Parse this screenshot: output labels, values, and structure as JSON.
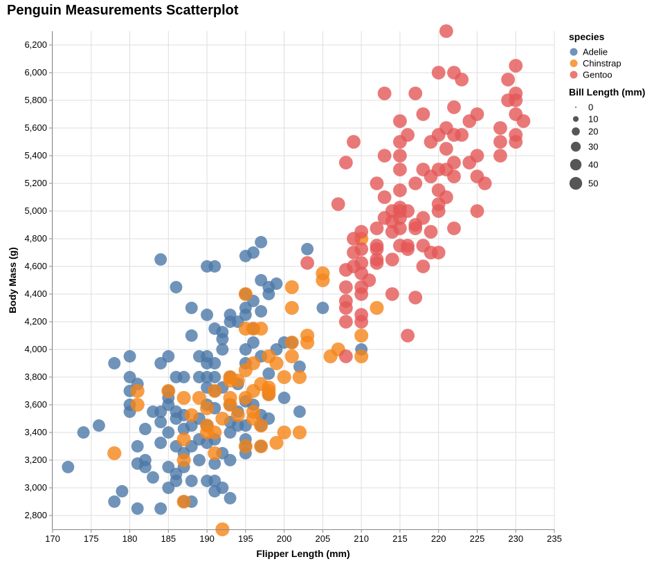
{
  "chart_data": {
    "type": "scatter",
    "title": "Penguin Measurements Scatterplot",
    "xlabel": "Flipper Length (mm)",
    "ylabel": "Body Mass (g)",
    "xlim": [
      170,
      235
    ],
    "ylim": [
      2700,
      6300
    ],
    "x_ticks": [
      170,
      175,
      180,
      185,
      190,
      195,
      200,
      205,
      210,
      215,
      220,
      225,
      230,
      235
    ],
    "y_ticks": [
      2800,
      3000,
      3200,
      3400,
      3600,
      3800,
      4000,
      4200,
      4400,
      4600,
      4800,
      5000,
      5200,
      5400,
      5600,
      5800,
      6000,
      6200
    ],
    "grid": true,
    "legend_position": "right",
    "color_legend": {
      "title": "species",
      "entries": [
        {
          "name": "Adelie",
          "color": "#4c78a8"
        },
        {
          "name": "Chinstrap",
          "color": "#f58518"
        },
        {
          "name": "Gentoo",
          "color": "#e45756"
        }
      ]
    },
    "size_legend": {
      "title": "Bill Length (mm)",
      "values": [
        0,
        10,
        20,
        30,
        40,
        50
      ]
    },
    "series": [
      {
        "name": "Adelie",
        "color": "#4c78a8",
        "bill_length": 38.8,
        "points": [
          [
            172,
            3150
          ],
          [
            174,
            3400
          ],
          [
            176,
            3450
          ],
          [
            178,
            2900
          ],
          [
            178,
            3900
          ],
          [
            179,
            2975
          ],
          [
            180,
            3550
          ],
          [
            180,
            3600
          ],
          [
            180,
            3700
          ],
          [
            180,
            3800
          ],
          [
            180,
            3950
          ],
          [
            181,
            2850
          ],
          [
            181,
            3175
          ],
          [
            181,
            3300
          ],
          [
            181,
            3750
          ],
          [
            182,
            3150
          ],
          [
            182,
            3200
          ],
          [
            182,
            3425
          ],
          [
            183,
            3075
          ],
          [
            183,
            3550
          ],
          [
            184,
            2850
          ],
          [
            184,
            3325
          ],
          [
            184,
            3475
          ],
          [
            184,
            3550
          ],
          [
            184,
            3900
          ],
          [
            184,
            4650
          ],
          [
            185,
            3000
          ],
          [
            185,
            3150
          ],
          [
            185,
            3400
          ],
          [
            185,
            3600
          ],
          [
            185,
            3650
          ],
          [
            185,
            3700
          ],
          [
            185,
            3950
          ],
          [
            186,
            3050
          ],
          [
            186,
            3100
          ],
          [
            186,
            3300
          ],
          [
            186,
            3500
          ],
          [
            186,
            3550
          ],
          [
            186,
            3800
          ],
          [
            186,
            4450
          ],
          [
            187,
            2900
          ],
          [
            187,
            3150
          ],
          [
            187,
            3250
          ],
          [
            187,
            3425
          ],
          [
            187,
            3525
          ],
          [
            187,
            3800
          ],
          [
            188,
            2900
          ],
          [
            188,
            3050
          ],
          [
            188,
            3300
          ],
          [
            188,
            3450
          ],
          [
            188,
            4100
          ],
          [
            188,
            4300
          ],
          [
            189,
            3200
          ],
          [
            189,
            3350
          ],
          [
            189,
            3500
          ],
          [
            189,
            3800
          ],
          [
            189,
            3950
          ],
          [
            190,
            3050
          ],
          [
            190,
            3325
          ],
          [
            190,
            3450
          ],
          [
            190,
            3600
          ],
          [
            190,
            3725
          ],
          [
            190,
            3800
          ],
          [
            190,
            3900
          ],
          [
            190,
            3950
          ],
          [
            190,
            4250
          ],
          [
            190,
            4600
          ],
          [
            191,
            2975
          ],
          [
            191,
            3050
          ],
          [
            191,
            3175
          ],
          [
            191,
            3350
          ],
          [
            191,
            3575
          ],
          [
            191,
            3700
          ],
          [
            191,
            3800
          ],
          [
            191,
            3900
          ],
          [
            191,
            4150
          ],
          [
            191,
            4600
          ],
          [
            192,
            3000
          ],
          [
            192,
            3250
          ],
          [
            192,
            3725
          ],
          [
            192,
            4000
          ],
          [
            192,
            4075
          ],
          [
            192,
            4125
          ],
          [
            193,
            2925
          ],
          [
            193,
            3200
          ],
          [
            193,
            3400
          ],
          [
            193,
            3475
          ],
          [
            193,
            3600
          ],
          [
            193,
            3800
          ],
          [
            193,
            4200
          ],
          [
            193,
            4250
          ],
          [
            194,
            3450
          ],
          [
            194,
            3550
          ],
          [
            194,
            3750
          ],
          [
            194,
            4200
          ],
          [
            195,
            3250
          ],
          [
            195,
            3300
          ],
          [
            195,
            3350
          ],
          [
            195,
            3450
          ],
          [
            195,
            3625
          ],
          [
            195,
            3900
          ],
          [
            195,
            4000
          ],
          [
            195,
            4250
          ],
          [
            195,
            4300
          ],
          [
            195,
            4400
          ],
          [
            195,
            4675
          ],
          [
            196,
            3600
          ],
          [
            196,
            4050
          ],
          [
            196,
            4150
          ],
          [
            196,
            4350
          ],
          [
            196,
            4700
          ],
          [
            197,
            3300
          ],
          [
            197,
            3450
          ],
          [
            197,
            3525
          ],
          [
            197,
            3950
          ],
          [
            197,
            4275
          ],
          [
            197,
            4500
          ],
          [
            197,
            4775
          ],
          [
            198,
            3500
          ],
          [
            198,
            3675
          ],
          [
            198,
            3825
          ],
          [
            198,
            4400
          ],
          [
            198,
            4450
          ],
          [
            199,
            4000
          ],
          [
            199,
            4475
          ],
          [
            200,
            3650
          ],
          [
            200,
            4050
          ],
          [
            201,
            4050
          ],
          [
            202,
            3550
          ],
          [
            202,
            3875
          ],
          [
            203,
            4725
          ],
          [
            205,
            4300
          ],
          [
            210,
            4000
          ]
        ]
      },
      {
        "name": "Chinstrap",
        "color": "#f58518",
        "bill_length": 48.8,
        "points": [
          [
            178,
            3250
          ],
          [
            181,
            3600
          ],
          [
            181,
            3700
          ],
          [
            185,
            3700
          ],
          [
            187,
            2900
          ],
          [
            187,
            3200
          ],
          [
            187,
            3350
          ],
          [
            187,
            3650
          ],
          [
            188,
            3525
          ],
          [
            189,
            3650
          ],
          [
            190,
            3400
          ],
          [
            190,
            3450
          ],
          [
            190,
            3575
          ],
          [
            191,
            3250
          ],
          [
            191,
            3400
          ],
          [
            191,
            3700
          ],
          [
            192,
            2700
          ],
          [
            192,
            3500
          ],
          [
            193,
            3600
          ],
          [
            193,
            3650
          ],
          [
            193,
            3775
          ],
          [
            193,
            3800
          ],
          [
            194,
            3525
          ],
          [
            194,
            3775
          ],
          [
            195,
            3300
          ],
          [
            195,
            3650
          ],
          [
            195,
            3850
          ],
          [
            195,
            4150
          ],
          [
            195,
            4400
          ],
          [
            196,
            3500
          ],
          [
            196,
            3550
          ],
          [
            196,
            3700
          ],
          [
            196,
            3900
          ],
          [
            196,
            4150
          ],
          [
            197,
            3300
          ],
          [
            197,
            3450
          ],
          [
            197,
            3750
          ],
          [
            197,
            4150
          ],
          [
            198,
            3675
          ],
          [
            198,
            3700
          ],
          [
            198,
            3725
          ],
          [
            198,
            3950
          ],
          [
            199,
            3325
          ],
          [
            199,
            3900
          ],
          [
            200,
            3400
          ],
          [
            200,
            3800
          ],
          [
            201,
            3950
          ],
          [
            201,
            4050
          ],
          [
            201,
            4300
          ],
          [
            201,
            4450
          ],
          [
            202,
            3400
          ],
          [
            202,
            3800
          ],
          [
            203,
            4050
          ],
          [
            203,
            4100
          ],
          [
            205,
            4500
          ],
          [
            205,
            4550
          ],
          [
            206,
            3950
          ],
          [
            207,
            4000
          ],
          [
            210,
            3950
          ],
          [
            210,
            4100
          ],
          [
            210,
            4800
          ],
          [
            212,
            4300
          ]
        ]
      },
      {
        "name": "Gentoo",
        "color": "#e45756",
        "bill_length": 47.5,
        "points": [
          [
            203,
            4625
          ],
          [
            207,
            5050
          ],
          [
            208,
            3950
          ],
          [
            208,
            4200
          ],
          [
            208,
            4300
          ],
          [
            208,
            4350
          ],
          [
            208,
            4450
          ],
          [
            208,
            4575
          ],
          [
            208,
            5350
          ],
          [
            209,
            4600
          ],
          [
            209,
            4700
          ],
          [
            209,
            4800
          ],
          [
            209,
            5500
          ],
          [
            210,
            4200
          ],
          [
            210,
            4250
          ],
          [
            210,
            4400
          ],
          [
            210,
            4450
          ],
          [
            210,
            4550
          ],
          [
            210,
            4625
          ],
          [
            210,
            4725
          ],
          [
            210,
            4850
          ],
          [
            211,
            4500
          ],
          [
            212,
            4625
          ],
          [
            212,
            4650
          ],
          [
            212,
            4725
          ],
          [
            212,
            4750
          ],
          [
            212,
            4875
          ],
          [
            212,
            5200
          ],
          [
            213,
            4950
          ],
          [
            213,
            5100
          ],
          [
            213,
            5400
          ],
          [
            213,
            5850
          ],
          [
            214,
            4400
          ],
          [
            214,
            4650
          ],
          [
            214,
            4850
          ],
          [
            214,
            4925
          ],
          [
            214,
            5000
          ],
          [
            215,
            4750
          ],
          [
            215,
            4875
          ],
          [
            215,
            4950
          ],
          [
            215,
            5000
          ],
          [
            215,
            5025
          ],
          [
            215,
            5150
          ],
          [
            215,
            5300
          ],
          [
            215,
            5400
          ],
          [
            215,
            5500
          ],
          [
            215,
            5650
          ],
          [
            216,
            4100
          ],
          [
            216,
            4725
          ],
          [
            216,
            4750
          ],
          [
            216,
            5000
          ],
          [
            216,
            5550
          ],
          [
            217,
            4375
          ],
          [
            217,
            4875
          ],
          [
            217,
            4900
          ],
          [
            217,
            5200
          ],
          [
            217,
            5850
          ],
          [
            218,
            4600
          ],
          [
            218,
            4750
          ],
          [
            218,
            4950
          ],
          [
            218,
            5300
          ],
          [
            218,
            5700
          ],
          [
            219,
            4700
          ],
          [
            219,
            4850
          ],
          [
            219,
            5250
          ],
          [
            219,
            5500
          ],
          [
            220,
            4700
          ],
          [
            220,
            5000
          ],
          [
            220,
            5050
          ],
          [
            220,
            5150
          ],
          [
            220,
            5300
          ],
          [
            220,
            5550
          ],
          [
            220,
            6000
          ],
          [
            221,
            5100
          ],
          [
            221,
            5300
          ],
          [
            221,
            5450
          ],
          [
            221,
            5600
          ],
          [
            221,
            6300
          ],
          [
            222,
            4875
          ],
          [
            222,
            5250
          ],
          [
            222,
            5350
          ],
          [
            222,
            5550
          ],
          [
            222,
            5750
          ],
          [
            222,
            6000
          ],
          [
            223,
            5550
          ],
          [
            223,
            5950
          ],
          [
            224,
            5350
          ],
          [
            224,
            5650
          ],
          [
            225,
            5000
          ],
          [
            225,
            5250
          ],
          [
            225,
            5400
          ],
          [
            225,
            5700
          ],
          [
            226,
            5200
          ],
          [
            228,
            5400
          ],
          [
            228,
            5600
          ],
          [
            228,
            5500
          ],
          [
            229,
            5800
          ],
          [
            229,
            5950
          ],
          [
            230,
            5500
          ],
          [
            230,
            5550
          ],
          [
            230,
            5700
          ],
          [
            230,
            5800
          ],
          [
            230,
            5850
          ],
          [
            230,
            6050
          ],
          [
            231,
            5650
          ]
        ]
      }
    ]
  }
}
